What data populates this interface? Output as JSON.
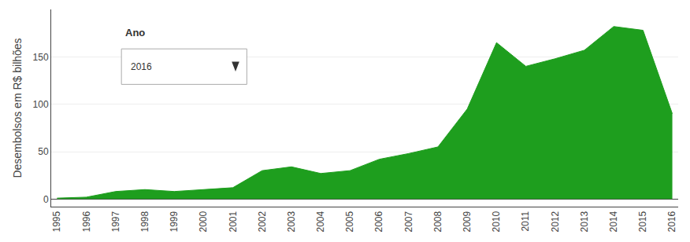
{
  "chart_data": {
    "type": "area",
    "x": [
      1995,
      1996,
      1997,
      1998,
      1999,
      2000,
      2001,
      2002,
      2003,
      2004,
      2005,
      2006,
      2007,
      2008,
      2009,
      2010,
      2011,
      2012,
      2013,
      2014,
      2015,
      2016
    ],
    "values": [
      1,
      2,
      8,
      10,
      8,
      10,
      12,
      30,
      34,
      27,
      30,
      42,
      48,
      55,
      95,
      165,
      140,
      148,
      157,
      182,
      178,
      90
    ],
    "color": "#1e9e1e",
    "ylabel": "Desembolsos em R$ bilhões",
    "xlim": [
      1994.8,
      2016.2
    ],
    "xticks": [
      1995,
      1996,
      1997,
      1998,
      1999,
      2000,
      2001,
      2002,
      2003,
      2004,
      2005,
      2006,
      2007,
      2008,
      2009,
      2010,
      2011,
      2012,
      2013,
      2014,
      2015,
      2016
    ],
    "ylim": [
      -8,
      200
    ],
    "yticks": [
      0,
      50,
      100,
      150
    ],
    "grid": true,
    "annotations": [
      "Ano",
      "2016"
    ]
  }
}
